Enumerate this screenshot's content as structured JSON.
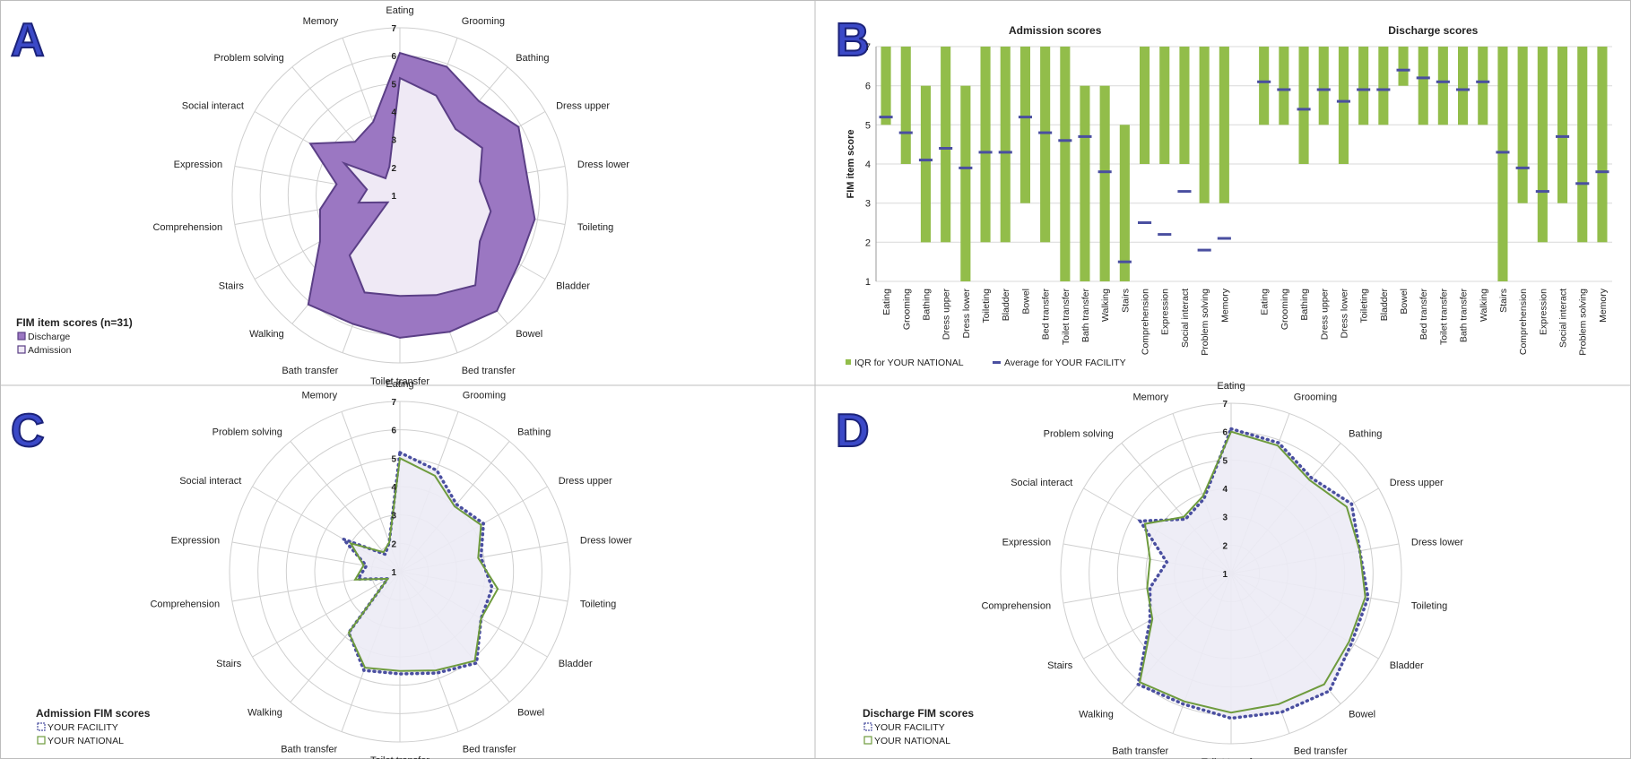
{
  "colors": {
    "discharge_fill": "#9b77c2",
    "discharge_stroke": "#5b3f86",
    "admission_fill": "#efe9f5",
    "admission_stroke": "#5b3f86",
    "iqr_bar": "#92bd4a",
    "facility_dots": "#4a4fa0",
    "national_line": "#6e9b3d",
    "letter_fill": "#3b49c7",
    "letter_stroke": "#1c237a",
    "grid": "#cfcfcf",
    "panel_border": "#bdbdbd"
  },
  "panels": {
    "a": {
      "letter": "A"
    },
    "b": {
      "letter": "B"
    },
    "c": {
      "letter": "C"
    },
    "d": {
      "letter": "D"
    }
  },
  "chart_data": [
    {
      "panel": "A",
      "type": "radar",
      "categories": [
        "Eating",
        "Grooming",
        "Bathing",
        "Dress upper",
        "Dress lower",
        "Toileting",
        "Bladder",
        "Bowel",
        "Bed transfer",
        "Toilet transfer",
        "Bath transfer",
        "Walking",
        "Stairs",
        "Comprehension",
        "Expression",
        "Social interact",
        "Problem solving",
        "Memory"
      ],
      "rticks": [
        "1",
        "2",
        "3",
        "4",
        "5",
        "6",
        "7"
      ],
      "rlim": [
        1,
        7
      ],
      "legend_title": "FIM item scores (n=31)",
      "series": [
        {
          "name": "Discharge",
          "values": [
            6.1,
            5.9,
            5.4,
            5.9,
            5.6,
            5.9,
            5.9,
            6.4,
            6.2,
            6.1,
            5.9,
            6.1,
            4.3,
            3.9,
            3.3,
            4.7,
            3.5,
            3.8
          ]
        },
        {
          "name": "Admission",
          "values": [
            5.2,
            4.8,
            4.1,
            4.4,
            3.9,
            4.3,
            4.3,
            5.2,
            4.8,
            4.6,
            4.7,
            3.8,
            1.5,
            2.5,
            2.2,
            3.3,
            1.8,
            2.1
          ]
        }
      ]
    },
    {
      "panel": "B",
      "type": "bar",
      "ylabel": "FIM item score",
      "ylim": [
        1,
        7
      ],
      "yticks": [
        "1",
        "2",
        "3",
        "4",
        "5",
        "6",
        "7"
      ],
      "group_titles": [
        "Admission scores",
        "Discharge scores"
      ],
      "legend": [
        "IQR for YOUR NATIONAL",
        "Average for YOUR FACILITY"
      ],
      "categories": [
        "Eating",
        "Grooming",
        "Bathing",
        "Dress upper",
        "Dress lower",
        "Toileting",
        "Bladder",
        "Bowel",
        "Bed transfer",
        "Toilet transfer",
        "Bath transfer",
        "Walking",
        "Stairs",
        "Comprehension",
        "Expression",
        "Social interact",
        "Problem solving",
        "Memory"
      ],
      "admission": {
        "iqr_low": [
          5,
          4,
          2,
          2,
          1,
          2,
          2,
          3,
          2,
          1,
          1,
          1,
          1,
          4,
          4,
          4,
          3,
          3
        ],
        "iqr_high": [
          7,
          7,
          6,
          7,
          6,
          7,
          7,
          7,
          7,
          7,
          6,
          6,
          5,
          7,
          7,
          7,
          7,
          7
        ],
        "average": [
          5.2,
          4.8,
          4.1,
          4.4,
          3.9,
          4.3,
          4.3,
          5.2,
          4.8,
          4.6,
          4.7,
          3.8,
          1.5,
          2.5,
          2.2,
          3.3,
          1.8,
          2.1
        ]
      },
      "discharge": {
        "iqr_low": [
          5,
          5,
          4,
          5,
          4,
          5,
          5,
          6,
          5,
          5,
          5,
          5,
          1,
          3,
          2,
          3,
          2,
          2
        ],
        "iqr_high": [
          7,
          7,
          7,
          7,
          7,
          7,
          7,
          7,
          7,
          7,
          7,
          7,
          7,
          7,
          7,
          7,
          7,
          7
        ],
        "average": [
          6.1,
          5.9,
          5.4,
          5.9,
          5.6,
          5.9,
          5.9,
          6.4,
          6.2,
          6.1,
          5.9,
          6.1,
          4.3,
          3.9,
          3.3,
          4.7,
          3.5,
          3.8
        ]
      }
    },
    {
      "panel": "C",
      "type": "radar",
      "categories": [
        "Eating",
        "Grooming",
        "Bathing",
        "Dress upper",
        "Dress lower",
        "Toileting",
        "Bladder",
        "Bowel",
        "Bed transfer",
        "Toilet transfer",
        "Bath transfer",
        "Walking",
        "Stairs",
        "Comprehension",
        "Expression",
        "Social interact",
        "Problem solving",
        "Memory"
      ],
      "rticks": [
        "1",
        "2",
        "3",
        "4",
        "5",
        "6",
        "7"
      ],
      "rlim": [
        1,
        7
      ],
      "legend_title": "Admission FIM scores",
      "series": [
        {
          "name": "YOUR FACILITY",
          "values": [
            5.2,
            4.8,
            4.1,
            4.4,
            3.9,
            4.3,
            4.3,
            5.2,
            4.8,
            4.6,
            4.7,
            3.8,
            1.5,
            2.5,
            2.2,
            3.3,
            1.8,
            2.1
          ]
        },
        {
          "name": "YOUR NATIONAL",
          "values": [
            5.0,
            4.6,
            4.0,
            4.3,
            3.8,
            4.5,
            4.3,
            5.1,
            4.7,
            4.5,
            4.6,
            3.8,
            1.5,
            2.6,
            2.3,
            3.0,
            1.9,
            2.1
          ]
        }
      ]
    },
    {
      "panel": "D",
      "type": "radar",
      "categories": [
        "Eating",
        "Grooming",
        "Bathing",
        "Dress upper",
        "Dress lower",
        "Toileting",
        "Bladder",
        "Bowel",
        "Bed transfer",
        "Toilet transfer",
        "Bath transfer",
        "Walking",
        "Stairs",
        "Comprehension",
        "Expression",
        "Social interact",
        "Problem solving",
        "Memory"
      ],
      "rticks": [
        "1",
        "2",
        "3",
        "4",
        "5",
        "6",
        "7"
      ],
      "rlim": [
        1,
        7
      ],
      "legend_title": "Discharge FIM scores",
      "series": [
        {
          "name": "YOUR FACILITY",
          "values": [
            6.1,
            5.9,
            5.4,
            5.9,
            5.6,
            5.9,
            5.9,
            6.4,
            6.2,
            6.1,
            5.9,
            6.1,
            4.3,
            3.9,
            3.3,
            4.7,
            3.5,
            3.8
          ]
        },
        {
          "name": "YOUR NATIONAL",
          "values": [
            6.0,
            5.8,
            5.3,
            5.7,
            5.6,
            5.8,
            5.8,
            6.1,
            5.9,
            5.9,
            5.8,
            6.0,
            4.2,
            4.0,
            3.9,
            4.5,
            3.6,
            3.9
          ]
        }
      ]
    }
  ]
}
